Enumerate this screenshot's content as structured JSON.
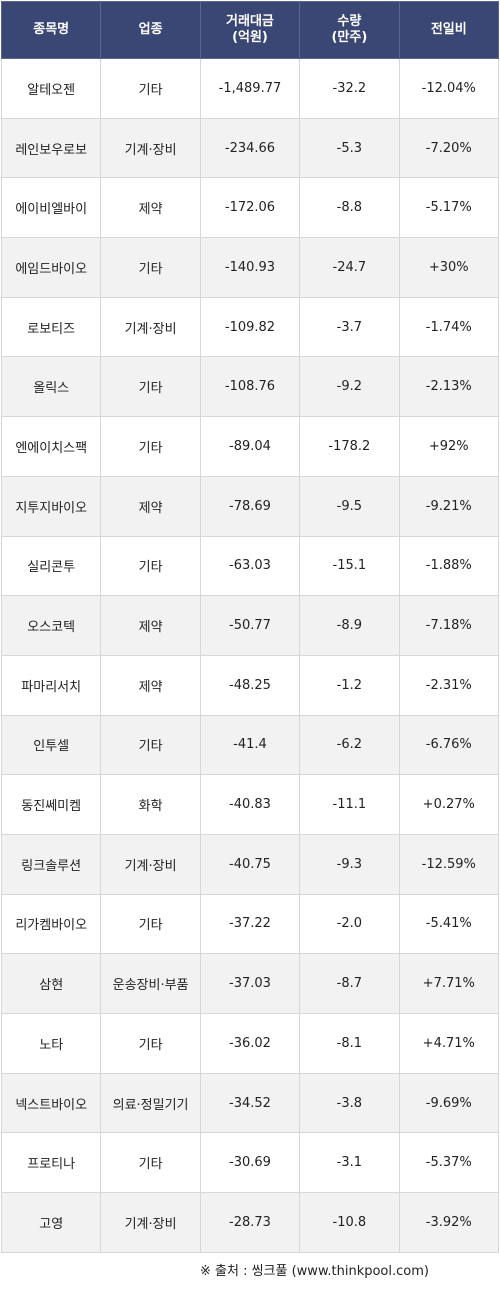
{
  "headers": {
    "name": "종목명",
    "sector": "업종",
    "amount_line1": "거래대금",
    "amount_line2": "(억원)",
    "volume_line1": "수량",
    "volume_line2": "(만주)",
    "change": "전일비"
  },
  "colors": {
    "header_bg": "#3a4775",
    "negative": "#2a2aa8",
    "positive": "#d81e1e",
    "alt_row_bg": "#f2f2f2"
  },
  "rows": [
    {
      "name": "알테오젠",
      "sector": "기타",
      "amount": "-1,489.77",
      "volume": "-32.2",
      "change": "-12.04%"
    },
    {
      "name": "레인보우로보",
      "sector": "기계·장비",
      "amount": "-234.66",
      "volume": "-5.3",
      "change": "-7.20%"
    },
    {
      "name": "에이비엘바이",
      "sector": "제약",
      "amount": "-172.06",
      "volume": "-8.8",
      "change": "-5.17%"
    },
    {
      "name": "에임드바이오",
      "sector": "기타",
      "amount": "-140.93",
      "volume": "-24.7",
      "change": "+30%"
    },
    {
      "name": "로보티즈",
      "sector": "기계·장비",
      "amount": "-109.82",
      "volume": "-3.7",
      "change": "-1.74%"
    },
    {
      "name": "올릭스",
      "sector": "기타",
      "amount": "-108.76",
      "volume": "-9.2",
      "change": "-2.13%"
    },
    {
      "name": "엔에이치스팩",
      "sector": "기타",
      "amount": "-89.04",
      "volume": "-178.2",
      "change": "+92%"
    },
    {
      "name": "지투지바이오",
      "sector": "제약",
      "amount": "-78.69",
      "volume": "-9.5",
      "change": "-9.21%"
    },
    {
      "name": "실리콘투",
      "sector": "기타",
      "amount": "-63.03",
      "volume": "-15.1",
      "change": "-1.88%"
    },
    {
      "name": "오스코텍",
      "sector": "제약",
      "amount": "-50.77",
      "volume": "-8.9",
      "change": "-7.18%"
    },
    {
      "name": "파마리서치",
      "sector": "제약",
      "amount": "-48.25",
      "volume": "-1.2",
      "change": "-2.31%"
    },
    {
      "name": "인투셀",
      "sector": "기타",
      "amount": "-41.4",
      "volume": "-6.2",
      "change": "-6.76%"
    },
    {
      "name": "동진쎄미켐",
      "sector": "화학",
      "amount": "-40.83",
      "volume": "-11.1",
      "change": "+0.27%"
    },
    {
      "name": "링크솔루션",
      "sector": "기계·장비",
      "amount": "-40.75",
      "volume": "-9.3",
      "change": "-12.59%"
    },
    {
      "name": "리가켐바이오",
      "sector": "기타",
      "amount": "-37.22",
      "volume": "-2.0",
      "change": "-5.41%"
    },
    {
      "name": "삼현",
      "sector": "운송장비·부품",
      "amount": "-37.03",
      "volume": "-8.7",
      "change": "+7.71%"
    },
    {
      "name": "노타",
      "sector": "기타",
      "amount": "-36.02",
      "volume": "-8.1",
      "change": "+4.71%"
    },
    {
      "name": "넥스트바이오",
      "sector": "의료·정밀기기",
      "amount": "-34.52",
      "volume": "-3.8",
      "change": "-9.69%"
    },
    {
      "name": "프로티나",
      "sector": "기타",
      "amount": "-30.69",
      "volume": "-3.1",
      "change": "-5.37%"
    },
    {
      "name": "고영",
      "sector": "기계·장비",
      "amount": "-28.73",
      "volume": "-10.8",
      "change": "-3.92%"
    }
  ],
  "source": "※ 출처 : 씽크풀 (www.thinkpool.com)"
}
